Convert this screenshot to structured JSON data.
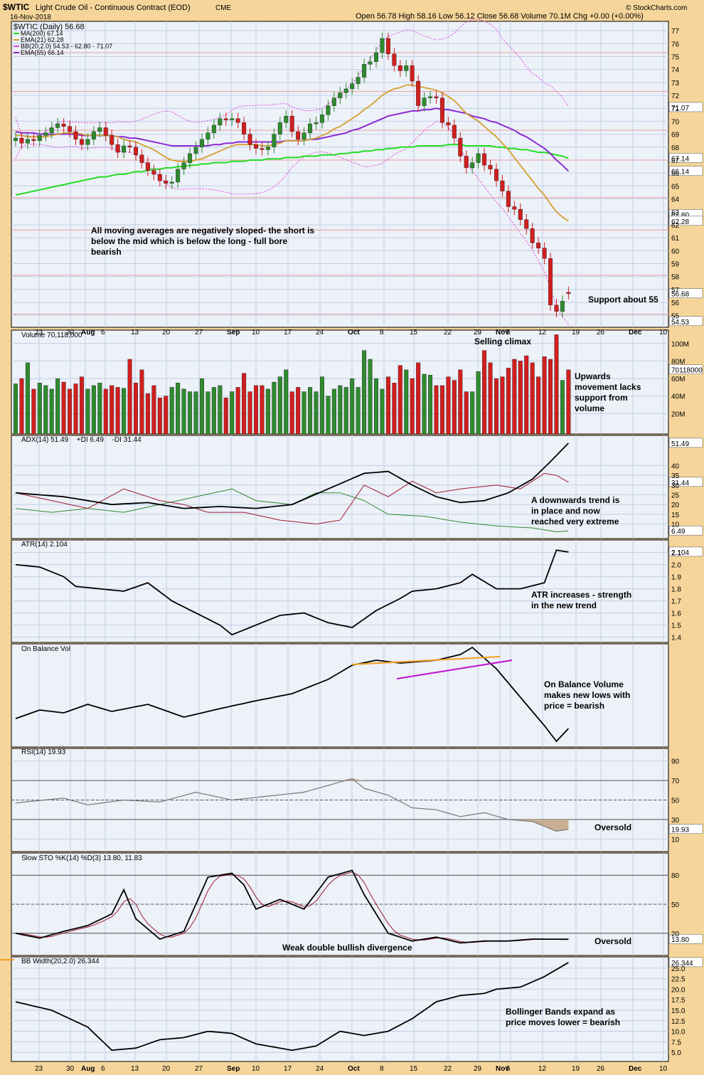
{
  "header": {
    "symbol": "$WTIC",
    "name": "Light Crude Oil - Continuous Contract (EOD)",
    "exchange": "CME",
    "date": "16-Nov-2018",
    "quote": "Open 56.78  High 58.16  Low 56.12  Close 56.68  Volume 70.1M  Chg +0.00 (+0.00%)",
    "watermark": "© StockCharts.com"
  },
  "colors": {
    "background": "#F5D59A",
    "panel": "#EDF1F8",
    "grid": "#BFD0E6",
    "up": "#2E8B2E",
    "down": "#D21E1E",
    "ma200": "#22DD22",
    "ema21": "#D4A030",
    "ema55": "#8A2BD2",
    "bb": "#E040E0"
  },
  "x_axis": {
    "labels": [
      "23",
      "30",
      "Aug",
      "6",
      "13",
      "20",
      "27",
      "Sep",
      "10",
      "17",
      "24",
      "Oct",
      "8",
      "15",
      "22",
      "29",
      "Nov",
      "5",
      "12",
      "19",
      "26",
      "Dec",
      "10"
    ]
  },
  "chart_data": [
    {
      "id": "price",
      "type": "candlestick",
      "legend": [
        "$WTIC (Daily) 56.68",
        "MA(200) 67.14",
        "EMA(21) 62.28",
        "BB(20,2.0) 54.53 - 62.80 - 71.07",
        "EMA(55) 66.14"
      ],
      "y_ticks": [
        55,
        56,
        57,
        58,
        59,
        60,
        61,
        62,
        63,
        64,
        65,
        66,
        67,
        68,
        69,
        70,
        71,
        72,
        73,
        74,
        75,
        76,
        77
      ],
      "ylim": [
        54.3,
        77.5
      ],
      "last_labels": [
        {
          "text": "71.07",
          "value": 71.07,
          "color": "#E040E0"
        },
        {
          "text": "67.14",
          "value": 67.14,
          "color": "#22DD22"
        },
        {
          "text": "66.14",
          "value": 66.14,
          "color": "#8A2BD2"
        },
        {
          "text": "62.80",
          "value": 62.8,
          "color": "#E040E0"
        },
        {
          "text": "62.28",
          "value": 62.28,
          "color": "#D4A030"
        },
        {
          "text": "56.68",
          "value": 56.68,
          "color": "#000000"
        },
        {
          "text": "54.53",
          "value": 54.53,
          "color": "#E040E0"
        }
      ],
      "annotations": [
        "All moving averages are negatively sloped- the short is",
        "below the mid which is below the long - full bore",
        "bearish"
      ],
      "support_label": "Support about 55",
      "close": [
        68.7,
        68.3,
        68.6,
        68.5,
        68.9,
        69.1,
        69.5,
        69.8,
        69.6,
        69.2,
        68.6,
        68.2,
        68.6,
        69.2,
        69.5,
        68.9,
        68.2,
        67.6,
        68.1,
        68.0,
        67.4,
        66.8,
        66.2,
        65.9,
        65.4,
        65.2,
        65.3,
        66.3,
        66.8,
        67.5,
        68.0,
        68.6,
        69.1,
        69.7,
        70.2,
        70.1,
        70.2,
        69.9,
        69.0,
        68.2,
        67.9,
        67.8,
        68.0,
        69.0,
        69.9,
        70.4,
        69.2,
        68.6,
        69.1,
        69.8,
        69.9,
        70.5,
        71.2,
        71.8,
        72.2,
        72.5,
        72.9,
        73.4,
        74.4,
        74.6,
        75.3,
        76.4,
        75.2,
        74.3,
        73.9,
        74.3,
        73.1,
        71.2,
        71.8,
        71.9,
        71.8,
        69.9,
        69.7,
        68.7,
        67.3,
        66.4,
        66.8,
        67.5,
        66.6,
        66.3,
        65.4,
        64.6,
        63.4,
        63.2,
        62.4,
        61.7,
        60.6,
        60.2,
        59.4,
        55.8,
        55.3,
        56.1,
        56.68
      ],
      "open": [
        68.5,
        68.7,
        68.3,
        68.6,
        68.5,
        68.9,
        69.1,
        69.5,
        69.8,
        69.6,
        69.2,
        68.6,
        68.2,
        68.6,
        69.2,
        69.5,
        68.9,
        68.2,
        67.6,
        68.1,
        68.0,
        67.4,
        66.8,
        66.2,
        65.9,
        65.4,
        65.2,
        65.3,
        66.3,
        66.8,
        67.5,
        68.0,
        68.6,
        69.1,
        69.7,
        70.2,
        70.1,
        70.2,
        69.9,
        69.0,
        68.2,
        67.9,
        67.8,
        68.0,
        69.0,
        69.9,
        70.4,
        69.2,
        68.6,
        69.1,
        69.8,
        69.9,
        70.5,
        71.2,
        71.8,
        72.2,
        72.5,
        72.9,
        73.4,
        74.4,
        74.6,
        75.3,
        76.4,
        75.2,
        74.3,
        73.9,
        74.3,
        73.1,
        71.2,
        71.8,
        71.9,
        71.8,
        69.9,
        69.7,
        68.7,
        67.3,
        66.4,
        66.8,
        67.5,
        66.6,
        66.3,
        65.4,
        64.6,
        63.4,
        63.2,
        62.4,
        61.7,
        60.6,
        60.2,
        59.4,
        55.8,
        55.3,
        56.78
      ],
      "ma200": [
        64.3,
        64.4,
        64.5,
        64.6,
        64.7,
        64.8,
        64.9,
        65.0,
        65.1,
        65.2,
        65.3,
        65.4,
        65.5,
        65.6,
        65.7,
        65.7,
        65.8,
        65.9,
        65.9,
        66.0,
        66.1,
        66.1,
        66.2,
        66.3,
        66.3,
        66.4,
        66.4,
        66.5,
        66.5,
        66.6,
        66.6,
        66.7,
        66.7,
        66.8,
        66.8,
        66.8,
        66.9,
        66.9,
        66.9,
        67.0,
        67.0,
        67.0,
        67.1,
        67.1,
        67.1,
        67.2,
        67.2,
        67.2,
        67.3,
        67.3,
        67.3,
        67.4,
        67.4,
        67.4,
        67.5,
        67.5,
        67.6,
        67.6,
        67.7,
        67.7,
        67.8,
        67.8,
        67.9,
        67.9,
        68.0,
        68.0,
        68.0,
        68.1,
        68.1,
        68.1,
        68.1,
        68.1,
        68.2,
        68.2,
        68.2,
        68.1,
        68.1,
        68.1,
        68.1,
        68.1,
        68.0,
        68.0,
        67.9,
        67.9,
        67.8,
        67.8,
        67.7,
        67.6,
        67.6,
        67.5,
        67.4,
        67.3,
        67.14
      ],
      "ema21": [
        68.9,
        68.9,
        68.8,
        68.8,
        68.8,
        68.8,
        68.9,
        69.0,
        69.1,
        69.1,
        69.1,
        69.0,
        68.9,
        68.9,
        68.9,
        68.9,
        68.9,
        68.8,
        68.6,
        68.5,
        68.4,
        68.2,
        68.0,
        67.8,
        67.5,
        67.2,
        67.0,
        66.9,
        66.9,
        66.9,
        67.0,
        67.1,
        67.3,
        67.5,
        67.7,
        67.9,
        68.1,
        68.2,
        68.2,
        68.2,
        68.2,
        68.1,
        68.1,
        68.2,
        68.3,
        68.5,
        68.5,
        68.5,
        68.5,
        68.6,
        68.7,
        68.9,
        69.1,
        69.4,
        69.6,
        69.9,
        70.2,
        70.5,
        70.9,
        71.2,
        71.6,
        72.0,
        72.3,
        72.5,
        72.6,
        72.8,
        72.8,
        72.7,
        72.6,
        72.5,
        72.4,
        72.2,
        71.9,
        71.6,
        71.1,
        70.6,
        70.3,
        70.0,
        69.6,
        69.2,
        68.8,
        68.3,
        67.8,
        67.2,
        66.6,
        66.0,
        65.4,
        64.8,
        64.3,
        63.6,
        63.0,
        62.6,
        62.28
      ],
      "ema55": [
        69.2,
        69.1,
        69.1,
        69.1,
        69.0,
        69.0,
        69.0,
        69.0,
        69.0,
        69.0,
        69.0,
        68.9,
        68.9,
        68.9,
        68.9,
        68.9,
        68.9,
        68.8,
        68.8,
        68.7,
        68.7,
        68.6,
        68.5,
        68.4,
        68.3,
        68.2,
        68.1,
        68.1,
        68.1,
        68.1,
        68.1,
        68.1,
        68.1,
        68.2,
        68.2,
        68.3,
        68.3,
        68.4,
        68.4,
        68.4,
        68.4,
        68.4,
        68.4,
        68.4,
        68.4,
        68.5,
        68.5,
        68.5,
        68.5,
        68.6,
        68.6,
        68.7,
        68.8,
        68.9,
        69.0,
        69.1,
        69.3,
        69.4,
        69.6,
        69.8,
        70.0,
        70.2,
        70.4,
        70.5,
        70.6,
        70.7,
        70.8,
        70.8,
        70.9,
        70.9,
        71.0,
        70.9,
        70.9,
        70.8,
        70.7,
        70.6,
        70.4,
        70.3,
        70.2,
        70.0,
        69.9,
        69.7,
        69.5,
        69.3,
        69.0,
        68.8,
        68.5,
        68.2,
        67.9,
        67.5,
        67.0,
        66.6,
        66.14
      ]
    },
    {
      "id": "volume",
      "type": "bar",
      "legend": "Volume 70,118,000",
      "y_ticks_labels": [
        "20M",
        "40M",
        "60M",
        "80M",
        "100M"
      ],
      "y_ticks": [
        20,
        40,
        60,
        80,
        100
      ],
      "ylim": [
        0,
        112
      ],
      "last_label": "70118000",
      "values": [
        54,
        60,
        78,
        48,
        55,
        52,
        48,
        60,
        56,
        48,
        54,
        62,
        48,
        52,
        55,
        48,
        52,
        50,
        49,
        82,
        55,
        70,
        43,
        52,
        38,
        40,
        50,
        55,
        48,
        45,
        45,
        60,
        45,
        50,
        52,
        38,
        45,
        50,
        66,
        45,
        52,
        52,
        48,
        56,
        62,
        70,
        45,
        50,
        45,
        50,
        45,
        62,
        40,
        48,
        52,
        50,
        60,
        50,
        92,
        82,
        60,
        48,
        62,
        55,
        75,
        70,
        60,
        78,
        65,
        64,
        52,
        52,
        62,
        58,
        70,
        45,
        45,
        68,
        92,
        78,
        60,
        62,
        72,
        82,
        80,
        86,
        78,
        62,
        85,
        82,
        110,
        58,
        70
      ],
      "caption": "Selling climax",
      "annotation": [
        "Upwards",
        "movement lacks",
        "support from",
        "volume"
      ]
    },
    {
      "id": "adx",
      "type": "line",
      "legend": [
        "ADX(14) 51.49",
        "+DI 6.49",
        "-DI 31.44"
      ],
      "y_ticks": [
        10,
        15,
        20,
        25,
        30,
        35,
        40
      ],
      "ylim": [
        4,
        54
      ],
      "last_labels": [
        {
          "text": "51.49",
          "value": 51.49
        },
        {
          "text": "31.44",
          "value": 31.44
        },
        {
          "text": "6.49",
          "value": 6.49
        }
      ],
      "annotation": [
        "A downwards trend is",
        "in place and now",
        "reached very extreme"
      ]
    },
    {
      "id": "atr",
      "type": "line",
      "legend": "ATR(14) 2.104",
      "y_ticks": [
        1.4,
        1.5,
        1.6,
        1.7,
        1.8,
        1.9,
        2.0,
        2.1
      ],
      "ylim": [
        1.38,
        2.18
      ],
      "last_label": "2.104",
      "annotation": [
        "ATR increases - strength",
        "in the new trend"
      ]
    },
    {
      "id": "obv",
      "type": "line",
      "legend": "On Balance Vol",
      "annotation": [
        "On Balance Volume",
        "makes new lows with",
        "price = bearish"
      ]
    },
    {
      "id": "rsi",
      "type": "line",
      "legend": "RSI(14) 19.93",
      "y_ticks": [
        10,
        30,
        50,
        70,
        90
      ],
      "ylim": [
        0,
        100
      ],
      "last_label": "19.93",
      "annotation": "Oversold"
    },
    {
      "id": "sto",
      "type": "line",
      "legend": "Slow STO %K(14) %D(3) 13.80, 11.83",
      "y_ticks": [
        20,
        50,
        80
      ],
      "ylim": [
        0,
        100
      ],
      "last_label": "13.80",
      "annotation": "Oversold",
      "divergence_label": "Weak double bullish divergence"
    },
    {
      "id": "bbwidth",
      "type": "line",
      "legend": "BB Width(20,2.0) 26.344",
      "y_ticks": [
        5.0,
        7.5,
        10.0,
        12.5,
        15.0,
        17.5,
        20.0,
        22.5,
        25.0
      ],
      "ylim": [
        3.5,
        27.0
      ],
      "last_label": "26.344",
      "annotation": [
        "Bollinger Bands expand as",
        "price moves lower = bearish"
      ]
    }
  ]
}
